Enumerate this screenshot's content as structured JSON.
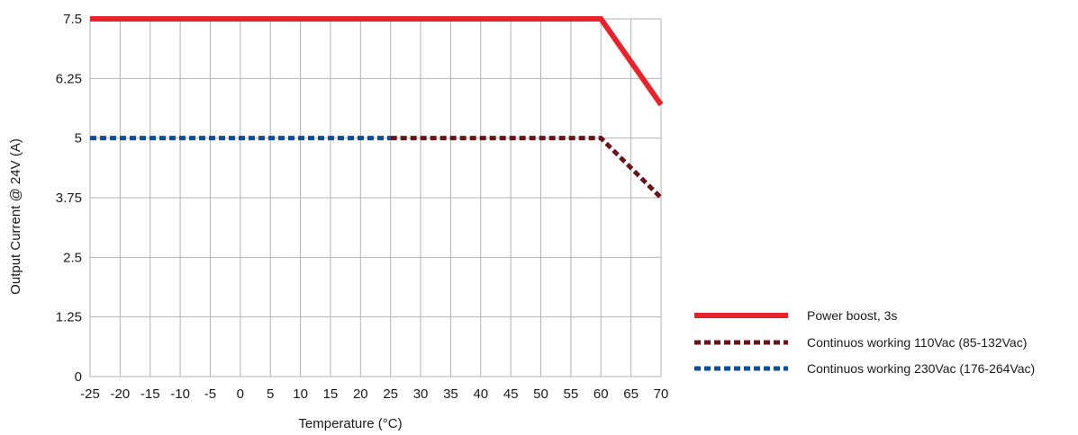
{
  "chart_data": {
    "type": "line",
    "xlabel": "Temperature (°C)",
    "ylabel": "Output Current @ 24V (A)",
    "xlim": [
      -25,
      70
    ],
    "ylim": [
      0,
      7.5
    ],
    "x_ticks": [
      "-25",
      "-20",
      "-15",
      "-10",
      "-5",
      "0",
      "5",
      "10",
      "15",
      "20",
      "25",
      "30",
      "35",
      "40",
      "45",
      "50",
      "55",
      "60",
      "65",
      "70"
    ],
    "y_ticks": [
      "0",
      "1.25",
      "2.5",
      "3.75",
      "5",
      "6.25",
      "7.5"
    ],
    "grid": true,
    "legend_position": "bottom-right",
    "series": [
      {
        "name": "Power boost, 3s",
        "color": "#e8232b",
        "style": "solid",
        "points": [
          [
            -25,
            7.5
          ],
          [
            60,
            7.5
          ],
          [
            70,
            5.7
          ]
        ]
      },
      {
        "name": "Continuos working 110Vac (85-132Vac)",
        "color": "#6b1418",
        "style": "dashed",
        "points": [
          [
            25,
            5
          ],
          [
            60,
            5
          ],
          [
            70,
            3.75
          ]
        ]
      },
      {
        "name": "Continuos working 230Vac (176-264Vac)",
        "color": "#0a4f9c",
        "style": "dashed",
        "points": [
          [
            -25,
            5
          ],
          [
            25,
            5
          ]
        ]
      }
    ]
  }
}
